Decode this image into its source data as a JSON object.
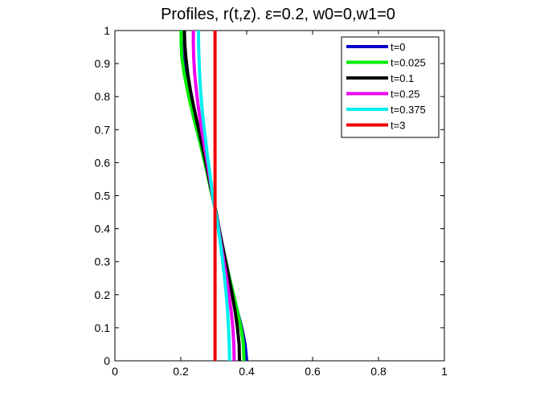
{
  "chart_data": {
    "type": "line",
    "title": "Profiles, r(t,z).   ε=0.2, w0=0,w1=0",
    "xlabel": "",
    "ylabel": "",
    "xlim": [
      0,
      1
    ],
    "ylim": [
      0,
      1
    ],
    "x_ticks": [
      "0",
      "0.2",
      "0.4",
      "0.6",
      "0.8",
      "1"
    ],
    "y_ticks": [
      "0",
      "0.1",
      "0.2",
      "0.3",
      "0.4",
      "0.5",
      "0.6",
      "0.7",
      "0.8",
      "0.9",
      "1"
    ],
    "grid": false,
    "legend_position": "top-right",
    "series": [
      {
        "name": "t=0",
        "color": "#0000cc",
        "points": [
          [
            0.4,
            0.0
          ],
          [
            0.395,
            0.05
          ],
          [
            0.385,
            0.1
          ],
          [
            0.372,
            0.15
          ],
          [
            0.36,
            0.2
          ],
          [
            0.348,
            0.25
          ],
          [
            0.337,
            0.3
          ],
          [
            0.326,
            0.35
          ],
          [
            0.316,
            0.4
          ],
          [
            0.307,
            0.45
          ],
          [
            0.3,
            0.48
          ],
          [
            0.291,
            0.52
          ],
          [
            0.28,
            0.57
          ],
          [
            0.27,
            0.62
          ],
          [
            0.258,
            0.67
          ],
          [
            0.246,
            0.72
          ],
          [
            0.234,
            0.77
          ],
          [
            0.222,
            0.82
          ],
          [
            0.212,
            0.87
          ],
          [
            0.205,
            0.92
          ],
          [
            0.202,
            0.96
          ],
          [
            0.201,
            1.0
          ]
        ]
      },
      {
        "name": "t=0.025",
        "color": "#00ee00",
        "points": [
          [
            0.392,
            0.0
          ],
          [
            0.39,
            0.05
          ],
          [
            0.383,
            0.1
          ],
          [
            0.372,
            0.15
          ],
          [
            0.36,
            0.2
          ],
          [
            0.348,
            0.25
          ],
          [
            0.337,
            0.3
          ],
          [
            0.326,
            0.35
          ],
          [
            0.316,
            0.4
          ],
          [
            0.307,
            0.45
          ],
          [
            0.3,
            0.48
          ],
          [
            0.29,
            0.52
          ],
          [
            0.28,
            0.57
          ],
          [
            0.268,
            0.62
          ],
          [
            0.256,
            0.67
          ],
          [
            0.243,
            0.72
          ],
          [
            0.231,
            0.77
          ],
          [
            0.22,
            0.82
          ],
          [
            0.21,
            0.87
          ],
          [
            0.203,
            0.92
          ],
          [
            0.201,
            0.96
          ],
          [
            0.201,
            1.0
          ]
        ]
      },
      {
        "name": "t=0.1",
        "color": "#000000",
        "points": [
          [
            0.378,
            0.0
          ],
          [
            0.377,
            0.05
          ],
          [
            0.372,
            0.1
          ],
          [
            0.365,
            0.15
          ],
          [
            0.356,
            0.2
          ],
          [
            0.346,
            0.25
          ],
          [
            0.336,
            0.3
          ],
          [
            0.326,
            0.35
          ],
          [
            0.316,
            0.4
          ],
          [
            0.307,
            0.45
          ],
          [
            0.3,
            0.48
          ],
          [
            0.292,
            0.52
          ],
          [
            0.282,
            0.57
          ],
          [
            0.272,
            0.62
          ],
          [
            0.261,
            0.67
          ],
          [
            0.25,
            0.72
          ],
          [
            0.239,
            0.77
          ],
          [
            0.229,
            0.82
          ],
          [
            0.221,
            0.87
          ],
          [
            0.215,
            0.92
          ],
          [
            0.212,
            0.96
          ],
          [
            0.211,
            1.0
          ]
        ]
      },
      {
        "name": "t=0.25",
        "color": "#ee00ee",
        "points": [
          [
            0.362,
            0.0
          ],
          [
            0.361,
            0.05
          ],
          [
            0.358,
            0.1
          ],
          [
            0.353,
            0.15
          ],
          [
            0.346,
            0.2
          ],
          [
            0.339,
            0.25
          ],
          [
            0.331,
            0.3
          ],
          [
            0.323,
            0.35
          ],
          [
            0.315,
            0.4
          ],
          [
            0.306,
            0.45
          ],
          [
            0.3,
            0.48
          ],
          [
            0.293,
            0.52
          ],
          [
            0.285,
            0.57
          ],
          [
            0.277,
            0.62
          ],
          [
            0.268,
            0.67
          ],
          [
            0.26,
            0.72
          ],
          [
            0.253,
            0.77
          ],
          [
            0.247,
            0.82
          ],
          [
            0.242,
            0.87
          ],
          [
            0.239,
            0.92
          ],
          [
            0.238,
            0.96
          ],
          [
            0.238,
            1.0
          ]
        ]
      },
      {
        "name": "t=0.375",
        "color": "#00eeee",
        "points": [
          [
            0.348,
            0.0
          ],
          [
            0.347,
            0.05
          ],
          [
            0.345,
            0.1
          ],
          [
            0.342,
            0.15
          ],
          [
            0.338,
            0.2
          ],
          [
            0.333,
            0.25
          ],
          [
            0.327,
            0.3
          ],
          [
            0.321,
            0.35
          ],
          [
            0.314,
            0.4
          ],
          [
            0.306,
            0.45
          ],
          [
            0.3,
            0.48
          ],
          [
            0.294,
            0.52
          ],
          [
            0.288,
            0.57
          ],
          [
            0.281,
            0.62
          ],
          [
            0.275,
            0.67
          ],
          [
            0.269,
            0.72
          ],
          [
            0.264,
            0.77
          ],
          [
            0.26,
            0.82
          ],
          [
            0.257,
            0.87
          ],
          [
            0.255,
            0.92
          ],
          [
            0.254,
            0.96
          ],
          [
            0.254,
            1.0
          ]
        ]
      },
      {
        "name": "t=3",
        "color": "#ee0000",
        "points": [
          [
            0.304,
            0.0
          ],
          [
            0.304,
            1.0
          ]
        ]
      }
    ]
  }
}
